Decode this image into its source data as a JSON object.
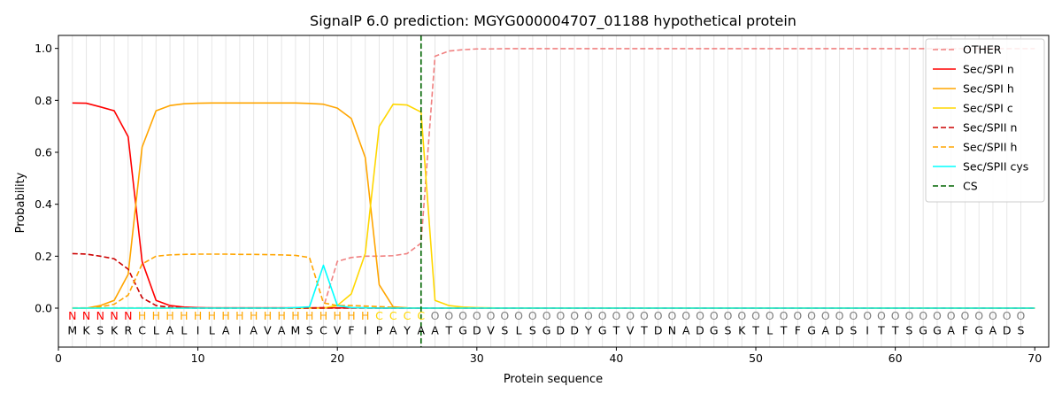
{
  "chart_data": {
    "type": "line",
    "title": "SignalP 6.0 prediction: MGYG000004707_01188 hypothetical protein",
    "xlabel": "Protein sequence",
    "ylabel": "Probability",
    "xlim": [
      0,
      71
    ],
    "ylim": [
      -0.15,
      1.05
    ],
    "x_ticks": [
      0,
      10,
      20,
      30,
      40,
      50,
      60,
      70
    ],
    "y_ticks": [
      0.0,
      0.2,
      0.4,
      0.6,
      0.8,
      1.0
    ],
    "x_tick_labels": [
      "0",
      "10",
      "20",
      "30",
      "40",
      "50",
      "60",
      "70"
    ],
    "y_tick_labels": [
      "0.0",
      "0.2",
      "0.4",
      "0.6",
      "0.8",
      "1.0"
    ],
    "grid": "vertical lines at each residue position",
    "legend_position": "top-right",
    "sequence": [
      "M",
      "K",
      "S",
      "K",
      "R",
      "C",
      "L",
      "A",
      "L",
      "I",
      "L",
      "A",
      "I",
      "A",
      "V",
      "A",
      "M",
      "S",
      "C",
      "V",
      "F",
      "I",
      "P",
      "A",
      "Y",
      "A",
      "A",
      "T",
      "G",
      "D",
      "V",
      "S",
      "L",
      "S",
      "G",
      "D",
      "D",
      "Y",
      "G",
      "T",
      "V",
      "T",
      "D",
      "N",
      "A",
      "D",
      "G",
      "S",
      "K",
      "T",
      "L",
      "T",
      "F",
      "G",
      "A",
      "D",
      "S",
      "I",
      "T",
      "T",
      "S",
      "G",
      "G",
      "A",
      "F",
      "G",
      "A",
      "D",
      "S"
    ],
    "labels": [
      "N",
      "N",
      "N",
      "N",
      "N",
      "H",
      "H",
      "H",
      "H",
      "H",
      "H",
      "H",
      "H",
      "H",
      "H",
      "H",
      "H",
      "H",
      "H",
      "H",
      "H",
      "H",
      "C",
      "C",
      "C",
      "C",
      "O",
      "O",
      "O",
      "O",
      "O",
      "O",
      "O",
      "O",
      "O",
      "O",
      "O",
      "O",
      "O",
      "O",
      "O",
      "O",
      "O",
      "O",
      "O",
      "O",
      "O",
      "O",
      "O",
      "O",
      "O",
      "O",
      "O",
      "O",
      "O",
      "O",
      "O",
      "O",
      "O",
      "O",
      "O",
      "O",
      "O",
      "O",
      "O",
      "O",
      "O",
      "O",
      "O",
      "O"
    ],
    "label_colors": {
      "N": "#ff0000",
      "H": "#ffa500",
      "C": "#ffd700",
      "O": "#808080"
    },
    "cs_position": 26,
    "cs_color": "#006400",
    "series": [
      {
        "name": "OTHER",
        "color": "#f08080",
        "dash": "dashed",
        "values": [
          0.001,
          0.001,
          0.001,
          0.001,
          0.001,
          0.001,
          0.001,
          0.001,
          0.001,
          0.001,
          0.001,
          0.001,
          0.001,
          0.001,
          0.001,
          0.001,
          0.001,
          0.001,
          0.003,
          0.18,
          0.195,
          0.2,
          0.2,
          0.202,
          0.21,
          0.25,
          0.97,
          0.99,
          0.995,
          0.998,
          0.998,
          0.999,
          0.999,
          0.999,
          0.999,
          0.999,
          0.999,
          0.999,
          0.999,
          0.999,
          0.999,
          0.999,
          0.999,
          0.999,
          0.999,
          0.999,
          0.999,
          0.999,
          0.999,
          0.999,
          0.999,
          0.999,
          0.999,
          0.999,
          0.999,
          0.999,
          0.999,
          0.999,
          0.999,
          0.999,
          0.999,
          0.999,
          0.999,
          0.999,
          0.999,
          0.999,
          0.999,
          0.999,
          0.999,
          0.999
        ]
      },
      {
        "name": "Sec/SPI n",
        "color": "#ff0000",
        "dash": "solid",
        "values": [
          0.79,
          0.789,
          0.775,
          0.76,
          0.66,
          0.18,
          0.03,
          0.01,
          0.004,
          0.002,
          0.001,
          0.001,
          0.001,
          0.001,
          0.001,
          0.001,
          0.001,
          0.001,
          0.001,
          0.001,
          0.001,
          0.001,
          0.0,
          0.0,
          0.0,
          0.0,
          0.0,
          0.0,
          0.0,
          0.0,
          0.0,
          0.0,
          0.0,
          0.0,
          0.0,
          0.0,
          0.0,
          0.0,
          0.0,
          0.0,
          0.0,
          0.0,
          0.0,
          0.0,
          0.0,
          0.0,
          0.0,
          0.0,
          0.0,
          0.0,
          0.0,
          0.0,
          0.0,
          0.0,
          0.0,
          0.0,
          0.0,
          0.0,
          0.0,
          0.0,
          0.0,
          0.0,
          0.0,
          0.0,
          0.0,
          0.0,
          0.0,
          0.0,
          0.0,
          0.0
        ]
      },
      {
        "name": "Sec/SPI h",
        "color": "#ffa500",
        "dash": "solid",
        "values": [
          0.0,
          0.0,
          0.01,
          0.03,
          0.13,
          0.62,
          0.76,
          0.78,
          0.787,
          0.789,
          0.79,
          0.79,
          0.79,
          0.79,
          0.79,
          0.79,
          0.79,
          0.788,
          0.785,
          0.77,
          0.73,
          0.58,
          0.09,
          0.005,
          0.001,
          0.0,
          0.0,
          0.0,
          0.0,
          0.0,
          0.0,
          0.0,
          0.0,
          0.0,
          0.0,
          0.0,
          0.0,
          0.0,
          0.0,
          0.0,
          0.0,
          0.0,
          0.0,
          0.0,
          0.0,
          0.0,
          0.0,
          0.0,
          0.0,
          0.0,
          0.0,
          0.0,
          0.0,
          0.0,
          0.0,
          0.0,
          0.0,
          0.0,
          0.0,
          0.0,
          0.0,
          0.0,
          0.0,
          0.0,
          0.0,
          0.0,
          0.0,
          0.0,
          0.0,
          0.0
        ]
      },
      {
        "name": "Sec/SPI c",
        "color": "#ffd700",
        "dash": "solid",
        "values": [
          0.0,
          0.0,
          0.0,
          0.0,
          0.0,
          0.0,
          0.0,
          0.0,
          0.0,
          0.0,
          0.0,
          0.0,
          0.0,
          0.0,
          0.0,
          0.0,
          0.0,
          0.0,
          0.0,
          0.01,
          0.055,
          0.21,
          0.7,
          0.785,
          0.782,
          0.755,
          0.03,
          0.01,
          0.004,
          0.002,
          0.001,
          0.0,
          0.0,
          0.0,
          0.0,
          0.0,
          0.0,
          0.0,
          0.0,
          0.0,
          0.0,
          0.0,
          0.0,
          0.0,
          0.0,
          0.0,
          0.0,
          0.0,
          0.0,
          0.0,
          0.0,
          0.0,
          0.0,
          0.0,
          0.0,
          0.0,
          0.0,
          0.0,
          0.0,
          0.0,
          0.0,
          0.0,
          0.0,
          0.0,
          0.0,
          0.0,
          0.0,
          0.0,
          0.0,
          0.0
        ]
      },
      {
        "name": "Sec/SPII n",
        "color": "#cc0000",
        "dash": "dashed",
        "values": [
          0.21,
          0.208,
          0.2,
          0.19,
          0.15,
          0.04,
          0.01,
          0.003,
          0.001,
          0.0,
          0.0,
          0.0,
          0.0,
          0.0,
          0.0,
          0.0,
          0.0,
          0.0,
          0.0,
          0.0,
          0.0,
          0.0,
          0.0,
          0.0,
          0.0,
          0.0,
          0.0,
          0.0,
          0.0,
          0.0,
          0.0,
          0.0,
          0.0,
          0.0,
          0.0,
          0.0,
          0.0,
          0.0,
          0.0,
          0.0,
          0.0,
          0.0,
          0.0,
          0.0,
          0.0,
          0.0,
          0.0,
          0.0,
          0.0,
          0.0,
          0.0,
          0.0,
          0.0,
          0.0,
          0.0,
          0.0,
          0.0,
          0.0,
          0.0,
          0.0,
          0.0,
          0.0,
          0.0,
          0.0,
          0.0,
          0.0,
          0.0,
          0.0,
          0.0,
          0.0
        ]
      },
      {
        "name": "Sec/SPII h",
        "color": "#ffa500",
        "dash": "dashed",
        "values": [
          0.0,
          0.0,
          0.005,
          0.015,
          0.05,
          0.17,
          0.2,
          0.205,
          0.207,
          0.208,
          0.208,
          0.208,
          0.207,
          0.207,
          0.206,
          0.205,
          0.203,
          0.195,
          0.02,
          0.01,
          0.01,
          0.008,
          0.006,
          0.003,
          0.001,
          0.0,
          0.0,
          0.0,
          0.0,
          0.0,
          0.0,
          0.0,
          0.0,
          0.0,
          0.0,
          0.0,
          0.0,
          0.0,
          0.0,
          0.0,
          0.0,
          0.0,
          0.0,
          0.0,
          0.0,
          0.0,
          0.0,
          0.0,
          0.0,
          0.0,
          0.0,
          0.0,
          0.0,
          0.0,
          0.0,
          0.0,
          0.0,
          0.0,
          0.0,
          0.0,
          0.0,
          0.0,
          0.0,
          0.0,
          0.0,
          0.0,
          0.0,
          0.0,
          0.0,
          0.0
        ]
      },
      {
        "name": "Sec/SPII cys",
        "color": "#00ffff",
        "dash": "solid",
        "values": [
          0.0,
          0.0,
          0.0,
          0.0,
          0.0,
          0.0,
          0.0,
          0.0,
          0.0,
          0.0,
          0.0,
          0.0,
          0.0,
          0.0,
          0.0,
          0.0,
          0.002,
          0.005,
          0.165,
          0.01,
          0.002,
          0.001,
          0.0,
          0.0,
          0.0,
          0.0,
          0.0,
          0.0,
          0.0,
          0.0,
          0.0,
          0.0,
          0.0,
          0.0,
          0.0,
          0.0,
          0.0,
          0.0,
          0.0,
          0.0,
          0.0,
          0.0,
          0.0,
          0.0,
          0.0,
          0.0,
          0.0,
          0.0,
          0.0,
          0.0,
          0.0,
          0.0,
          0.0,
          0.0,
          0.0,
          0.0,
          0.0,
          0.0,
          0.0,
          0.0,
          0.0,
          0.0,
          0.0,
          0.0,
          0.0,
          0.0,
          0.0,
          0.0,
          0.0,
          0.0
        ]
      }
    ],
    "legend_extra": [
      {
        "name": "CS",
        "color": "#006400",
        "dash": "dashed"
      }
    ]
  }
}
